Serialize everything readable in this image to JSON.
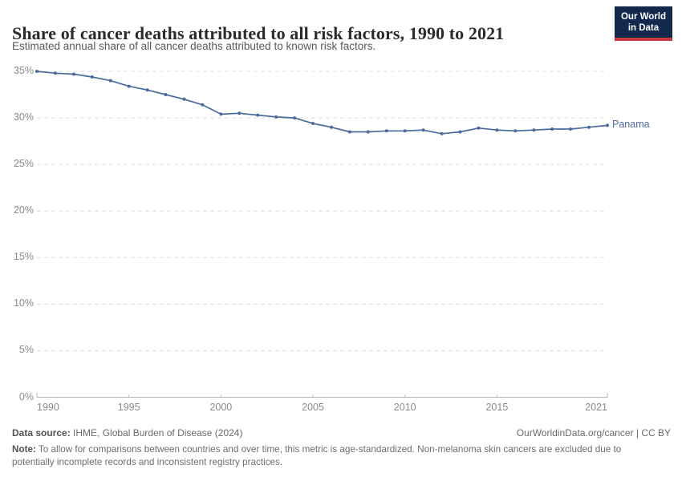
{
  "header": {
    "title": "Share of cancer deaths attributed to all risk factors, 1990 to 2021",
    "subtitle": "Estimated annual share of all cancer deaths attributed to known risk factors.",
    "logo": {
      "line1": "Our World",
      "line2": "in Data"
    }
  },
  "chart_data": {
    "type": "line",
    "title": "Share of cancer deaths attributed to all risk factors, 1990 to 2021",
    "xlabel": "",
    "ylabel": "",
    "xlim": [
      1990,
      2021
    ],
    "ylim": [
      0,
      35
    ],
    "grid": "horizontal-dashed",
    "legend_position": "end-of-line-label",
    "x_ticks": [
      1990,
      1995,
      2000,
      2005,
      2010,
      2015,
      2021
    ],
    "y_ticks": [
      "0%",
      "5%",
      "10%",
      "15%",
      "20%",
      "25%",
      "30%",
      "35%"
    ],
    "y_tick_values": [
      0,
      5,
      10,
      15,
      20,
      25,
      30,
      35
    ],
    "series": [
      {
        "name": "Panama",
        "color": "#4c6a9c",
        "x": [
          1990,
          1991,
          1992,
          1993,
          1994,
          1995,
          1996,
          1997,
          1998,
          1999,
          2000,
          2001,
          2002,
          2003,
          2004,
          2005,
          2006,
          2007,
          2008,
          2009,
          2010,
          2011,
          2012,
          2013,
          2014,
          2015,
          2016,
          2017,
          2018,
          2019,
          2020,
          2021
        ],
        "values": [
          35.0,
          34.8,
          34.7,
          34.4,
          34.0,
          33.4,
          33.0,
          32.5,
          32.0,
          31.4,
          30.4,
          30.5,
          30.3,
          30.1,
          30.0,
          29.4,
          29.0,
          28.5,
          28.5,
          28.6,
          28.6,
          28.7,
          28.3,
          28.5,
          28.9,
          28.7,
          28.6,
          28.7,
          28.8,
          28.8,
          29.0,
          29.2
        ]
      }
    ]
  },
  "colors": {
    "line": "#4c6a9c",
    "gridline": "#dcdcdc",
    "axis": "#b5b5b5",
    "tick_label": "#8a8a8a",
    "logo_bg": "#12294d",
    "logo_red": "#c53b3b"
  },
  "footer": {
    "datasource_label": "Data source:",
    "datasource_text": " IHME, Global Burden of Disease (2024)",
    "credit": "OurWorldinData.org/cancer | CC BY",
    "note_label": "Note:",
    "note_text": " To allow for comparisons between countries and over time, this metric is age-standardized. Non-melanoma skin cancers are excluded due to potentially incomplete records and inconsistent registry practices."
  }
}
